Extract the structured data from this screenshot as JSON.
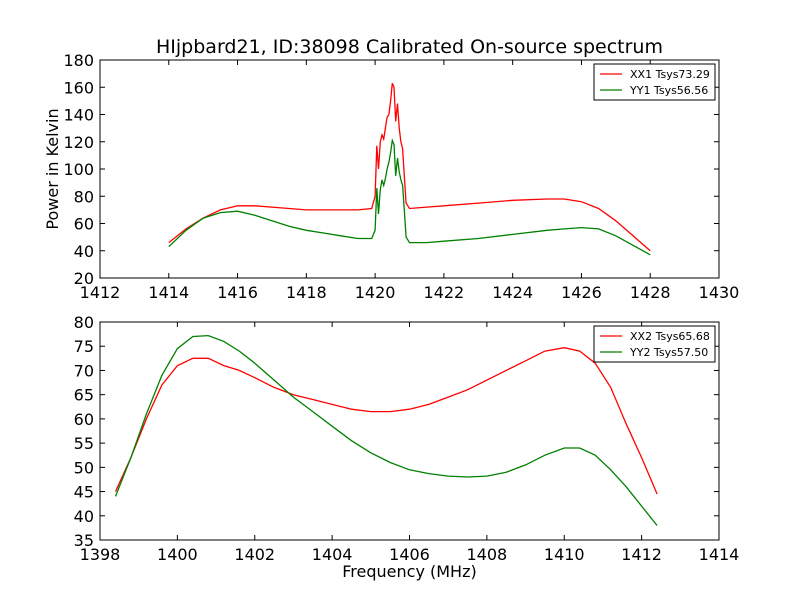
{
  "chart_data": [
    {
      "type": "line",
      "title": "HIjpbard21, ID:38098 Calibrated On-source spectrum",
      "xlabel": "",
      "ylabel": "Power in Kelvin",
      "xlim": [
        1412,
        1430
      ],
      "ylim": [
        20,
        180
      ],
      "xticks": [
        1412,
        1414,
        1416,
        1418,
        1420,
        1422,
        1424,
        1426,
        1428,
        1430
      ],
      "yticks": [
        20,
        40,
        60,
        80,
        100,
        120,
        140,
        160,
        180
      ],
      "legend_position": "top-right",
      "grid": false,
      "series": [
        {
          "name": "XX1 Tsys73.29",
          "color": "#ff0000",
          "x": [
            1414.0,
            1414.5,
            1415.0,
            1415.5,
            1416.0,
            1416.5,
            1417.0,
            1417.5,
            1418.0,
            1418.5,
            1419.0,
            1419.5,
            1419.9,
            1420.0,
            1420.05,
            1420.1,
            1420.15,
            1420.2,
            1420.25,
            1420.3,
            1420.35,
            1420.4,
            1420.45,
            1420.5,
            1420.55,
            1420.6,
            1420.65,
            1420.7,
            1420.75,
            1420.8,
            1420.85,
            1420.9,
            1421.0,
            1421.5,
            1422.0,
            1423.0,
            1424.0,
            1425.0,
            1425.5,
            1426.0,
            1426.5,
            1427.0,
            1427.5,
            1428.0
          ],
          "y": [
            46,
            56,
            64,
            70,
            73,
            73,
            72,
            71,
            70,
            70,
            70,
            70,
            71,
            80,
            117,
            100,
            120,
            125,
            122,
            130,
            138,
            140,
            150,
            163,
            160,
            135,
            148,
            130,
            120,
            115,
            95,
            75,
            71,
            72,
            73,
            75,
            77,
            78,
            78,
            76,
            71,
            62,
            51,
            40
          ]
        },
        {
          "name": "YY1 Tsys56.56",
          "color": "#008000",
          "x": [
            1414.0,
            1414.5,
            1415.0,
            1415.5,
            1416.0,
            1416.5,
            1417.0,
            1417.5,
            1418.0,
            1418.5,
            1419.0,
            1419.5,
            1419.9,
            1420.0,
            1420.05,
            1420.1,
            1420.15,
            1420.2,
            1420.25,
            1420.3,
            1420.35,
            1420.4,
            1420.45,
            1420.5,
            1420.55,
            1420.6,
            1420.65,
            1420.7,
            1420.75,
            1420.8,
            1420.85,
            1420.9,
            1421.0,
            1421.5,
            1422.0,
            1423.0,
            1424.0,
            1425.0,
            1425.5,
            1426.0,
            1426.5,
            1427.0,
            1427.5,
            1428.0
          ],
          "y": [
            43,
            55,
            64,
            68,
            69,
            66,
            62,
            58,
            55,
            53,
            51,
            49,
            49,
            55,
            86,
            67,
            85,
            92,
            88,
            93,
            100,
            105,
            112,
            121,
            118,
            95,
            108,
            98,
            92,
            88,
            70,
            50,
            46,
            46,
            47,
            49,
            52,
            55,
            56,
            57,
            56,
            51,
            44,
            37
          ]
        }
      ]
    },
    {
      "type": "line",
      "title": "",
      "xlabel": "Frequency (MHz)",
      "ylabel": "",
      "xlim": [
        1398,
        1414
      ],
      "ylim": [
        35,
        80
      ],
      "xticks": [
        1398,
        1400,
        1402,
        1404,
        1406,
        1408,
        1410,
        1412,
        1414
      ],
      "yticks": [
        35,
        40,
        45,
        50,
        55,
        60,
        65,
        70,
        75,
        80
      ],
      "legend_position": "top-right",
      "grid": false,
      "series": [
        {
          "name": "XX2 Tsys65.68",
          "color": "#ff0000",
          "x": [
            1398.4,
            1398.8,
            1399.2,
            1399.6,
            1400.0,
            1400.4,
            1400.8,
            1401.2,
            1401.6,
            1402.0,
            1402.5,
            1403.0,
            1403.5,
            1404.0,
            1404.5,
            1405.0,
            1405.5,
            1406.0,
            1406.5,
            1407.0,
            1407.5,
            1408.0,
            1408.5,
            1409.0,
            1409.5,
            1410.0,
            1410.4,
            1410.8,
            1411.2,
            1411.6,
            1412.0,
            1412.4
          ],
          "y": [
            45,
            52,
            60,
            67,
            71,
            72.5,
            72.5,
            71,
            70,
            68.5,
            66.5,
            65,
            64,
            63,
            62,
            61.5,
            61.5,
            62,
            63,
            64.5,
            66,
            68,
            70,
            72,
            74,
            74.7,
            74,
            71.5,
            66.5,
            59,
            52,
            44.5
          ]
        },
        {
          "name": "YY2 Tsys57.50",
          "color": "#008000",
          "x": [
            1398.4,
            1398.8,
            1399.2,
            1399.6,
            1400.0,
            1400.4,
            1400.8,
            1401.2,
            1401.6,
            1402.0,
            1402.5,
            1403.0,
            1403.5,
            1404.0,
            1404.5,
            1405.0,
            1405.5,
            1406.0,
            1406.5,
            1407.0,
            1407.5,
            1408.0,
            1408.5,
            1409.0,
            1409.5,
            1410.0,
            1410.4,
            1410.8,
            1411.2,
            1411.6,
            1412.0,
            1412.4
          ],
          "y": [
            44,
            52,
            61,
            69,
            74.5,
            77,
            77.2,
            76,
            74,
            71.5,
            68,
            64.5,
            61.5,
            58.5,
            55.5,
            53,
            51,
            49.5,
            48.7,
            48.2,
            48,
            48.2,
            49,
            50.5,
            52.5,
            54,
            54,
            52.5,
            49.5,
            46,
            42,
            38
          ]
        }
      ]
    }
  ]
}
